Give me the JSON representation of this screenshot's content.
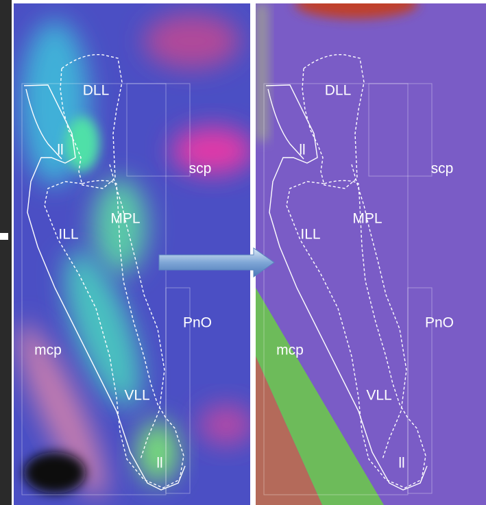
{
  "panels": [
    {
      "labels": [
        "DLL",
        "ll",
        "scp",
        "MPL",
        "ILL",
        "PnO",
        "mcp",
        "VLL",
        "ll"
      ]
    },
    {
      "labels": [
        "DLL",
        "ll",
        "scp",
        "MPL",
        "ILL",
        "PnO",
        "mcp",
        "VLL",
        "ll"
      ]
    }
  ]
}
